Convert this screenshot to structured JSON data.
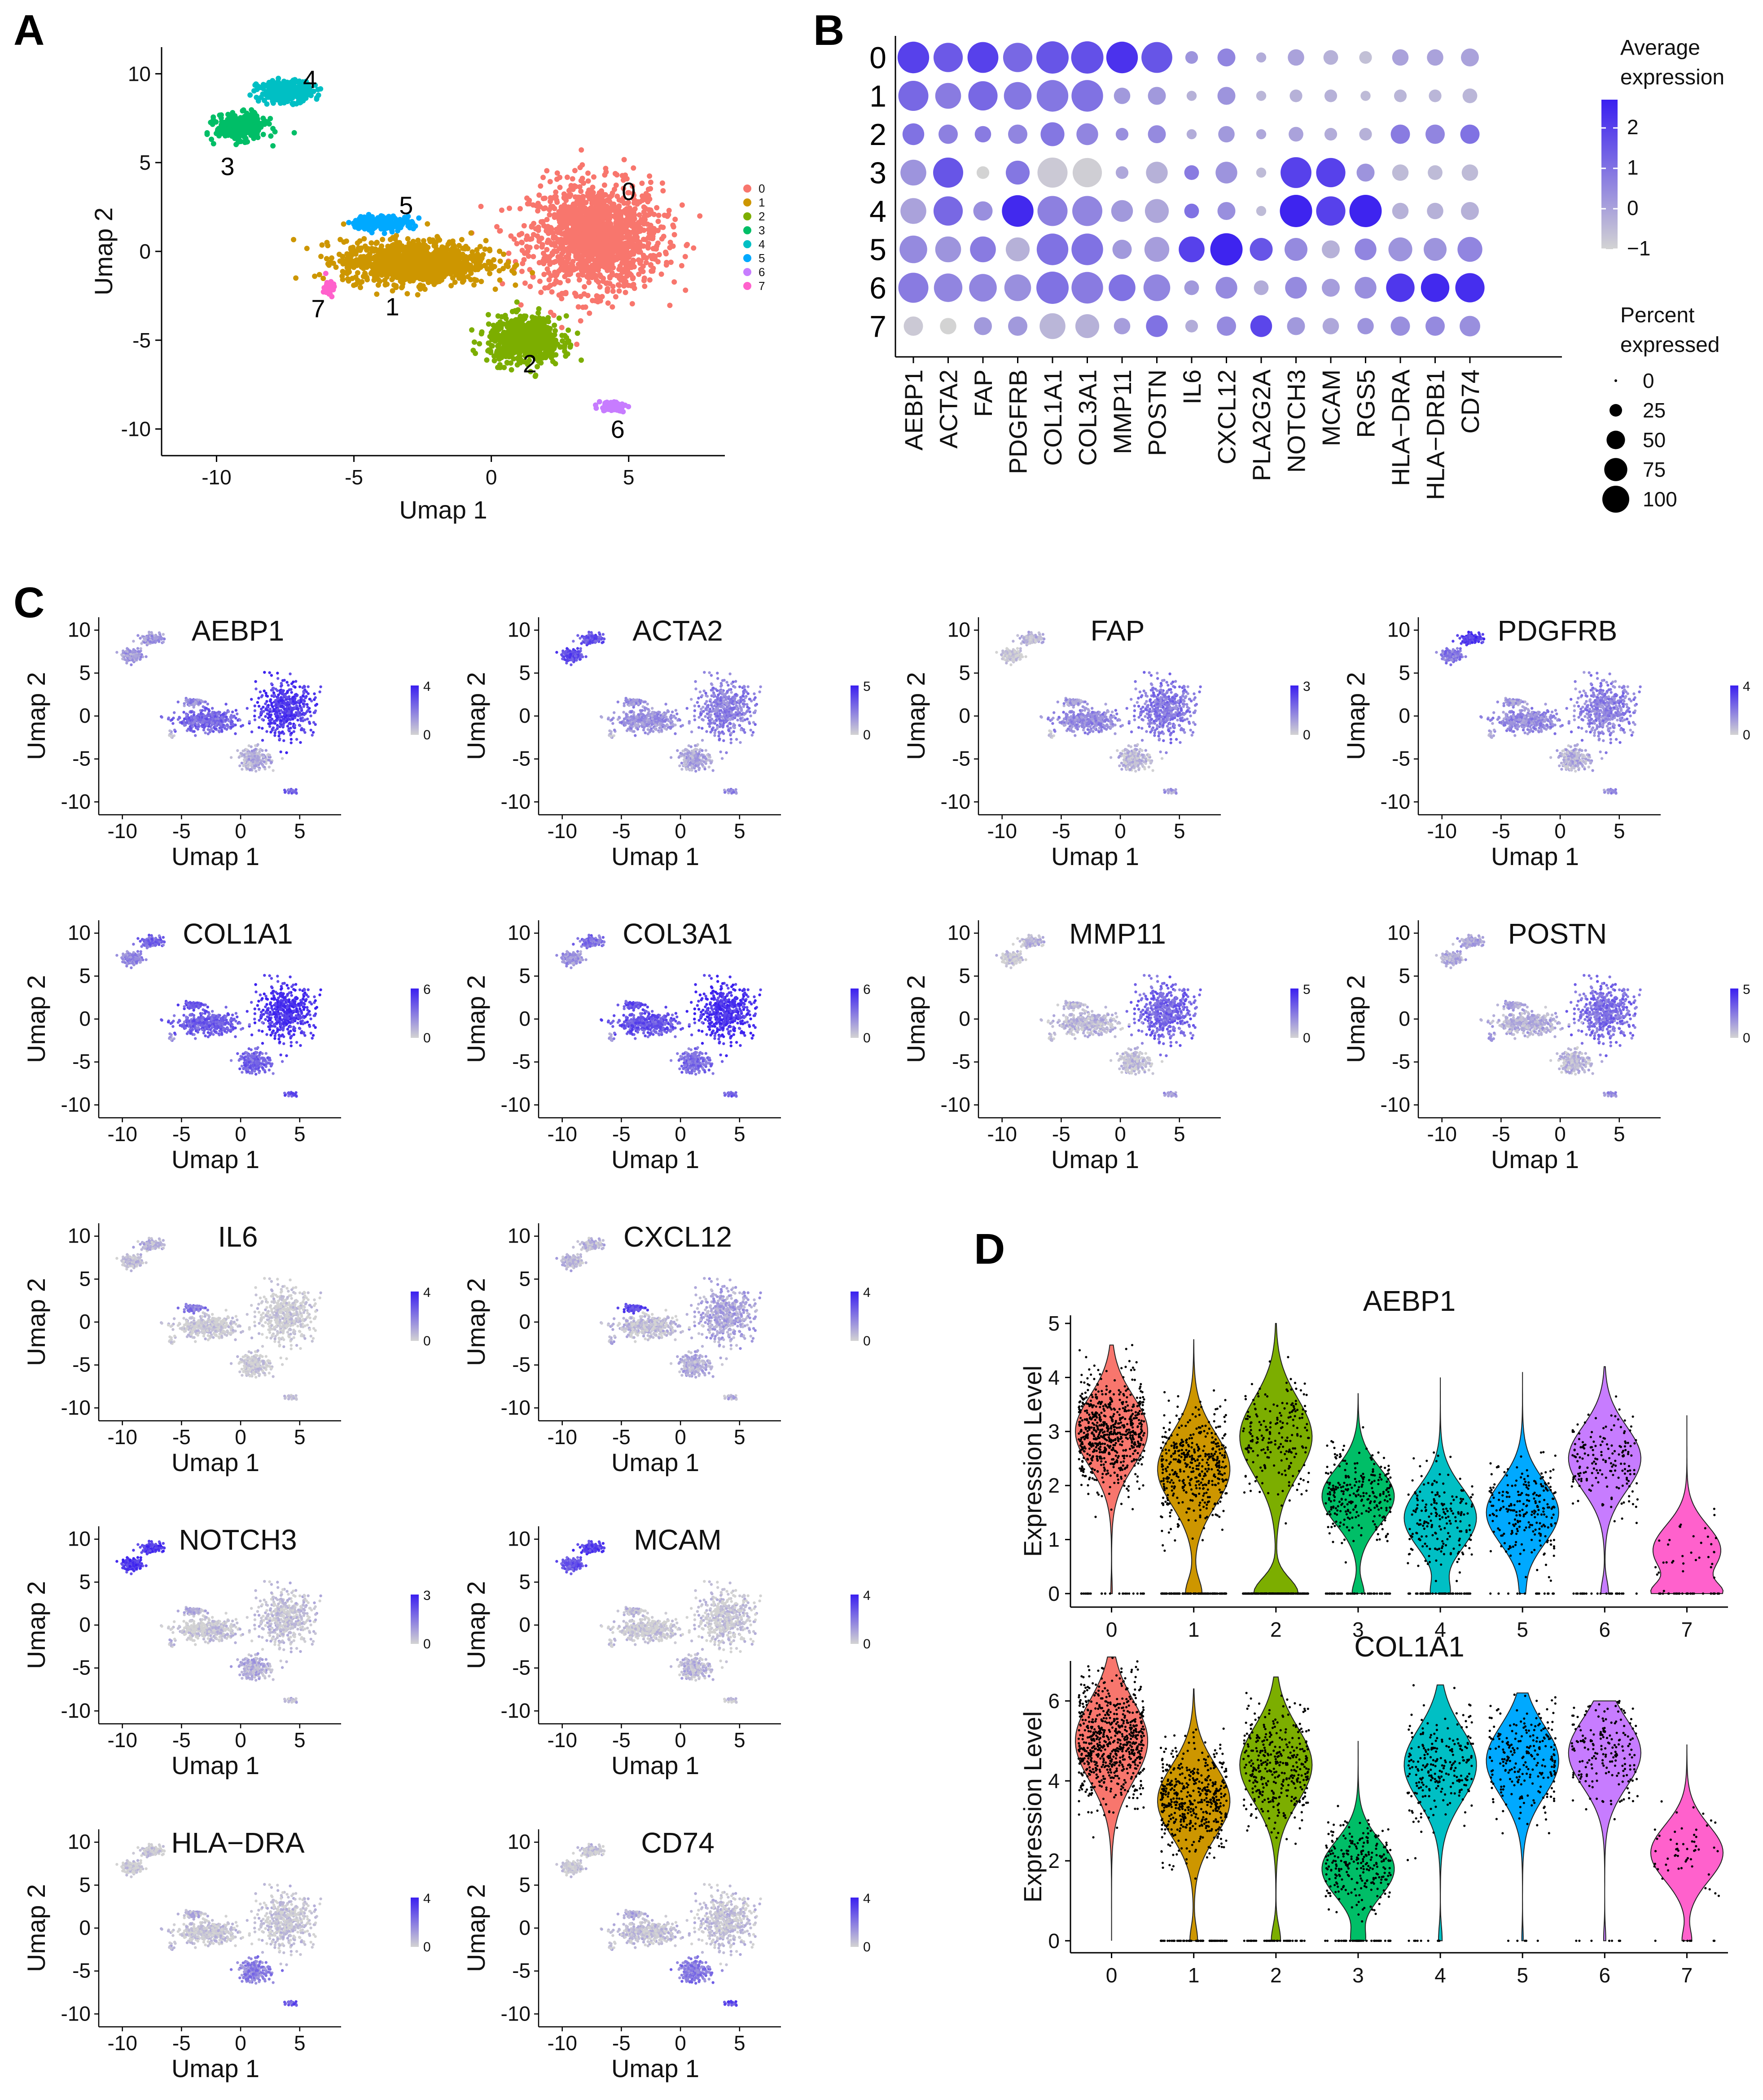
{
  "panel_labels": [
    "A",
    "B",
    "C",
    "D"
  ],
  "colors": {
    "clusters": [
      "#F8766D",
      "#CD9600",
      "#7CAE00",
      "#00BE67",
      "#00BFC4",
      "#00A9FF",
      "#C77CFF",
      "#FF61CC"
    ],
    "expr_low": "#d3d3d3",
    "expr_high": "#3a1ff0"
  },
  "chart_data": [
    {
      "panel": "A",
      "type": "scatter",
      "xlabel": "Umap 1",
      "ylabel": "Umap 2",
      "xlim": [
        -12,
        8.5
      ],
      "ylim": [
        -11.5,
        11.5
      ],
      "xticks": [
        -10,
        -5,
        0,
        5
      ],
      "yticks": [
        -10,
        -5,
        0,
        5,
        10
      ],
      "grid": false,
      "legend_position": "right",
      "legend": [
        "0",
        "1",
        "2",
        "3",
        "4",
        "5",
        "6",
        "7"
      ],
      "cluster_labels": [
        {
          "text": "0",
          "x": 5,
          "y": 3.4
        },
        {
          "text": "1",
          "x": -3.6,
          "y": -3.1
        },
        {
          "text": "2",
          "x": 1.4,
          "y": -6.3
        },
        {
          "text": "3",
          "x": -9.6,
          "y": 4.8
        },
        {
          "text": "4",
          "x": -6.6,
          "y": 9.7
        },
        {
          "text": "5",
          "x": -3.1,
          "y": 2.6
        },
        {
          "text": "6",
          "x": 4.6,
          "y": -10.0
        },
        {
          "text": "7",
          "x": -6.3,
          "y": -3.2
        }
      ],
      "clusters": [
        {
          "name": "0",
          "cx": 3.8,
          "cy": 0.8,
          "sx": 2.4,
          "sy": 3.0
        },
        {
          "name": "1",
          "cx": -2.8,
          "cy": -0.6,
          "sx": 2.6,
          "sy": 1.2
        },
        {
          "name": "2",
          "cx": 1.2,
          "cy": -5.0,
          "sx": 1.3,
          "sy": 1.3
        },
        {
          "name": "3",
          "cx": -9.1,
          "cy": 7.0,
          "sx": 0.9,
          "sy": 0.7
        },
        {
          "name": "4",
          "cx": -7.5,
          "cy": 9.0,
          "sx": 1.0,
          "sy": 0.6
        },
        {
          "name": "5",
          "cx": -4.0,
          "cy": 1.6,
          "sx": 1.1,
          "sy": 0.4
        },
        {
          "name": "6",
          "cx": 4.4,
          "cy": -8.7,
          "sx": 0.5,
          "sy": 0.3
        },
        {
          "name": "7",
          "cx": -5.9,
          "cy": -2.0,
          "sx": 0.2,
          "sy": 0.5
        }
      ]
    },
    {
      "panel": "B",
      "type": "scatter",
      "subtype": "dot plot",
      "rows": [
        "0",
        "1",
        "2",
        "3",
        "4",
        "5",
        "6",
        "7"
      ],
      "columns": [
        "AEBP1",
        "ACTA2",
        "FAP",
        "PDGFRB",
        "COL1A1",
        "COL3A1",
        "MMP11",
        "POSTN",
        "IL6",
        "CXCL12",
        "PLA2G2A",
        "NOTCH3",
        "MCAM",
        "RGS5",
        "HLA−DRA",
        "HLA−DRB1",
        "CD74"
      ],
      "avg_expression": [
        [
          2.0,
          1.5,
          2.0,
          1.2,
          1.6,
          1.7,
          2.3,
          1.6,
          0.3,
          0.6,
          -0.2,
          0.0,
          -0.3,
          -0.6,
          0.0,
          0.0,
          0.0
        ],
        [
          1.2,
          0.8,
          1.2,
          0.9,
          0.9,
          1.0,
          0.2,
          0.2,
          -0.3,
          0.3,
          -0.4,
          -0.3,
          -0.3,
          -0.5,
          -0.4,
          -0.4,
          -0.4
        ],
        [
          1.0,
          0.7,
          0.8,
          0.6,
          0.9,
          0.6,
          0.4,
          0.5,
          -0.2,
          0.2,
          -0.1,
          0.0,
          -0.2,
          -0.3,
          0.8,
          0.6,
          1.0
        ],
        [
          0.3,
          1.6,
          -1.0,
          0.9,
          -0.8,
          -0.9,
          -0.1,
          -0.3,
          0.8,
          0.3,
          -0.5,
          2.0,
          2.0,
          0.3,
          -0.5,
          -0.5,
          -0.5
        ],
        [
          0.0,
          1.2,
          0.4,
          2.5,
          0.7,
          0.6,
          0.2,
          -0.1,
          1.0,
          0.4,
          -0.5,
          2.6,
          2.0,
          2.6,
          -0.3,
          -0.3,
          -0.3
        ],
        [
          0.5,
          0.3,
          0.8,
          -0.3,
          1.0,
          1.0,
          0.2,
          0.1,
          2.0,
          2.6,
          1.6,
          0.5,
          -0.3,
          0.6,
          0.3,
          0.3,
          0.6
        ],
        [
          0.8,
          0.6,
          0.6,
          0.4,
          1.0,
          0.8,
          1.0,
          0.6,
          0.2,
          0.5,
          -0.2,
          0.5,
          0.1,
          0.4,
          2.2,
          2.5,
          2.4
        ],
        [
          -0.8,
          -1.0,
          0.2,
          0.2,
          -0.4,
          -0.3,
          0.1,
          1.0,
          -0.2,
          0.5,
          1.9,
          0.2,
          -0.1,
          0.3,
          0.4,
          0.5,
          0.4
        ]
      ],
      "pct_expressed": [
        [
          95,
          80,
          90,
          80,
          100,
          100,
          95,
          90,
          10,
          25,
          5,
          20,
          15,
          10,
          20,
          20,
          25
        ],
        [
          85,
          60,
          80,
          70,
          95,
          95,
          20,
          25,
          5,
          25,
          5,
          10,
          10,
          5,
          10,
          10,
          15
        ],
        [
          40,
          30,
          20,
          30,
          50,
          40,
          10,
          25,
          5,
          20,
          5,
          15,
          10,
          10,
          30,
          30,
          30
        ],
        [
          60,
          85,
          10,
          50,
          85,
          80,
          10,
          40,
          15,
          40,
          5,
          90,
          80,
          25,
          20,
          15,
          20
        ],
        [
          60,
          80,
          30,
          95,
          85,
          85,
          40,
          50,
          15,
          25,
          5,
          100,
          80,
          100,
          20,
          20,
          25
        ],
        [
          70,
          60,
          60,
          50,
          95,
          95,
          30,
          55,
          60,
          100,
          45,
          45,
          25,
          40,
          50,
          45,
          55
        ],
        [
          85,
          75,
          70,
          65,
          100,
          95,
          65,
          65,
          15,
          40,
          15,
          40,
          25,
          40,
          75,
          75,
          80
        ],
        [
          30,
          20,
          25,
          30,
          60,
          50,
          20,
          40,
          10,
          30,
          40,
          25,
          20,
          20,
          30,
          30,
          35
        ]
      ],
      "color_legend": {
        "title": "Average expression",
        "ticks": [
          2,
          1,
          0,
          "−1"
        ],
        "range": [
          -1,
          2.7
        ]
      },
      "size_legend": {
        "title": "Percent expressed",
        "values": [
          0,
          25,
          50,
          75,
          100
        ]
      }
    },
    {
      "panel": "C",
      "type": "scatter",
      "subtype": "feature plots",
      "xlabel": "Umap 1",
      "ylabel": "Umap 2",
      "xticks": [
        -10,
        -5,
        0,
        5
      ],
      "yticks": [
        -10,
        -5,
        0,
        5,
        10
      ],
      "plots": [
        {
          "gene": "AEBP1",
          "max": 4,
          "levels": [
            0.85,
            0.6,
            0.2,
            0.3,
            0.3,
            0.4,
            0.6,
            0.2
          ]
        },
        {
          "gene": "ACTA2",
          "max": 5,
          "levels": [
            0.45,
            0.35,
            0.25,
            0.75,
            0.7,
            0.35,
            0.4,
            0.15
          ]
        },
        {
          "gene": "FAP",
          "max": 3,
          "levels": [
            0.5,
            0.4,
            0.15,
            0.05,
            0.15,
            0.3,
            0.3,
            0.1
          ]
        },
        {
          "gene": "PDGFRB",
          "max": 4,
          "levels": [
            0.45,
            0.4,
            0.2,
            0.5,
            0.85,
            0.3,
            0.35,
            0.2
          ]
        },
        {
          "gene": "COL1A1",
          "max": 6,
          "levels": [
            0.9,
            0.65,
            0.6,
            0.4,
            0.6,
            0.7,
            0.7,
            0.35
          ]
        },
        {
          "gene": "COL3A1",
          "max": 6,
          "levels": [
            0.9,
            0.7,
            0.55,
            0.35,
            0.55,
            0.75,
            0.65,
            0.35
          ]
        },
        {
          "gene": "MMP11",
          "max": 5,
          "levels": [
            0.6,
            0.15,
            0.1,
            0.05,
            0.15,
            0.15,
            0.35,
            0.1
          ]
        },
        {
          "gene": "POSTN",
          "max": 5,
          "levels": [
            0.55,
            0.2,
            0.15,
            0.2,
            0.25,
            0.25,
            0.35,
            0.35
          ]
        },
        {
          "gene": "IL6",
          "max": 4,
          "levels": [
            0.02,
            0.03,
            0.02,
            0.1,
            0.15,
            0.5,
            0.05,
            0.02
          ]
        },
        {
          "gene": "CXCL12",
          "max": 4,
          "levels": [
            0.25,
            0.1,
            0.2,
            0.15,
            0.15,
            0.75,
            0.2,
            0.2
          ]
        },
        {
          "gene": "NOTCH3",
          "max": 3,
          "levels": [
            0.08,
            0.05,
            0.2,
            0.85,
            0.85,
            0.2,
            0.15,
            0.1
          ]
        },
        {
          "gene": "MCAM",
          "max": 4,
          "levels": [
            0.05,
            0.05,
            0.15,
            0.7,
            0.8,
            0.1,
            0.1,
            0.05
          ]
        },
        {
          "gene": "HLA−DRA",
          "max": 4,
          "levels": [
            0.05,
            0.05,
            0.45,
            0.03,
            0.05,
            0.15,
            0.7,
            0.15
          ]
        },
        {
          "gene": "CD74",
          "max": 4,
          "levels": [
            0.08,
            0.08,
            0.5,
            0.05,
            0.08,
            0.2,
            0.75,
            0.15
          ]
        }
      ]
    },
    {
      "panel": "D",
      "type": "scatter",
      "subtype": "violin",
      "violins": [
        {
          "title": "AEBP1",
          "ylabel": "Expression Level",
          "ylim": [
            -0.25,
            5.15
          ],
          "yticks": [
            0,
            1,
            2,
            3,
            4,
            5
          ],
          "categories": [
            "0",
            "1",
            "2",
            "3",
            "4",
            "5",
            "6",
            "7"
          ],
          "max": [
            4.6,
            4.7,
            5.0,
            3.7,
            4.0,
            4.1,
            4.2,
            3.3
          ],
          "mode": [
            3.0,
            2.3,
            2.9,
            1.8,
            1.4,
            1.5,
            2.5,
            0.8
          ],
          "zero_frac": [
            0.02,
            0.2,
            0.45,
            0.15,
            0.2,
            0.05,
            0.1,
            0.55
          ],
          "n_points": [
            700,
            550,
            400,
            300,
            250,
            250,
            200,
            60
          ]
        },
        {
          "title": "COL1A1",
          "ylabel": "Expression Level",
          "ylim": [
            -0.3,
            7.0
          ],
          "yticks": [
            0,
            2,
            4,
            6
          ],
          "categories": [
            "0",
            "1",
            "2",
            "3",
            "4",
            "5",
            "6",
            "7"
          ],
          "max": [
            7.1,
            6.3,
            6.6,
            5.0,
            6.4,
            6.2,
            6.0,
            4.9
          ],
          "mode": [
            5.0,
            3.5,
            4.4,
            1.8,
            4.4,
            4.5,
            4.7,
            2.2
          ],
          "zero_frac": [
            0.0,
            0.1,
            0.12,
            0.15,
            0.05,
            0.02,
            0.03,
            0.12
          ],
          "n_points": [
            700,
            550,
            400,
            300,
            250,
            250,
            200,
            60
          ]
        }
      ]
    }
  ]
}
